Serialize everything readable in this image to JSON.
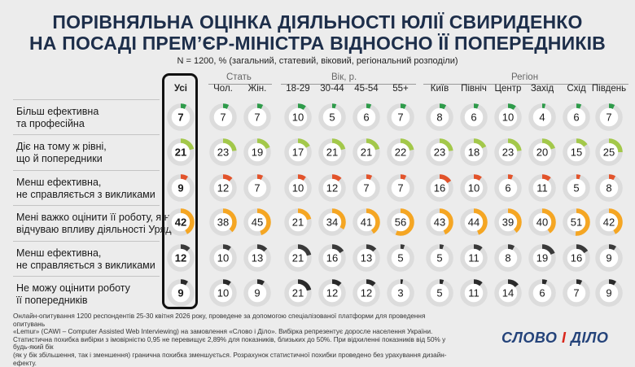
{
  "title_line1": "ПОРІВНЯЛЬНА ОЦІНКА ДІЯЛЬНОСТІ ЮЛІЇ СВИРИДЕНКО",
  "title_line2": "НА ПОСАДІ ПРЕМ’ЄР-МІНІСТРА ВІДНОСНО ЇЇ ПОПЕРЕДНИКІВ",
  "subtitle": "N = 1200, % (загальний, статевий, віковий, регіональний розподіли)",
  "groups": {
    "sex": "Стать",
    "age": "Вік, р.",
    "region": "Регіон"
  },
  "columns": [
    "Усі",
    "Чол.",
    "Жін.",
    "18-29",
    "30-44",
    "45-54",
    "55+",
    "Київ",
    "Північ",
    "Центр",
    "Захід",
    "Схід",
    "Південь"
  ],
  "rows": [
    "Більш ефективна\nта професійна",
    "Діє на тому ж рівні,\nщо й попередники",
    "Менш ефективна,\nне справляється з викликами",
    "Мені важко оцінити її роботу, я не\nвідчуваю впливу діяльності Уряд",
    "Менш ефективна,\nне справляється з викликами",
    "Не можу оцінити роботу\nїї попередників"
  ],
  "colors": [
    "#2e9b4a",
    "#a3c84a",
    "#e2532b",
    "#f5a623",
    "#3a3a3a",
    "#2a2a2a"
  ],
  "chart_data": {
    "type": "table",
    "title": "ПОРІВНЯЛЬНА ОЦІНКА ДІЯЛЬНОСТІ ЮЛІЇ СВИРИДЕНКО НА ПОСАДІ ПРЕМ’ЄР-МІНІСТРА ВІДНОСНО ЇЇ ПОПЕРЕДНИКІВ",
    "unit": "%",
    "values": [
      [
        7,
        7,
        7,
        10,
        5,
        6,
        7,
        8,
        6,
        10,
        4,
        6,
        7
      ],
      [
        21,
        23,
        19,
        17,
        21,
        21,
        22,
        23,
        18,
        23,
        20,
        15,
        25
      ],
      [
        9,
        12,
        7,
        10,
        12,
        7,
        7,
        16,
        10,
        6,
        11,
        5,
        8
      ],
      [
        42,
        38,
        45,
        21,
        34,
        41,
        56,
        43,
        44,
        39,
        40,
        51,
        42
      ],
      [
        12,
        10,
        13,
        21,
        16,
        13,
        5,
        5,
        11,
        8,
        19,
        16,
        9
      ],
      [
        9,
        10,
        9,
        21,
        12,
        12,
        3,
        5,
        11,
        14,
        6,
        7,
        9
      ]
    ]
  },
  "footer": [
    "Онлайн-опитування 1200 респондентів 25-30 квітня 2026 року, проведене за допомогою спеціалізованої платформи для проведення опитувань",
    "«Lemur» (CAWI – Computer Assisted Web Interviewing) на замовлення «Слово і Діло». Вибірка репрезентує доросле населення України.",
    "Статистична похибка вибірки з імовірністю 0,95 не перевищує 2,89% для показників, близьких до 50%. При відхиленні показників від 50% у будь-який бік",
    "(як у бік збільшення, так і зменшення) гранична похибка зменшується. Розрахунок статистичної похибки проведено без урахування дизайн-ефекту."
  ],
  "logo": {
    "left": "СЛОВО",
    "mid": "І",
    "right": "ДІЛО"
  }
}
